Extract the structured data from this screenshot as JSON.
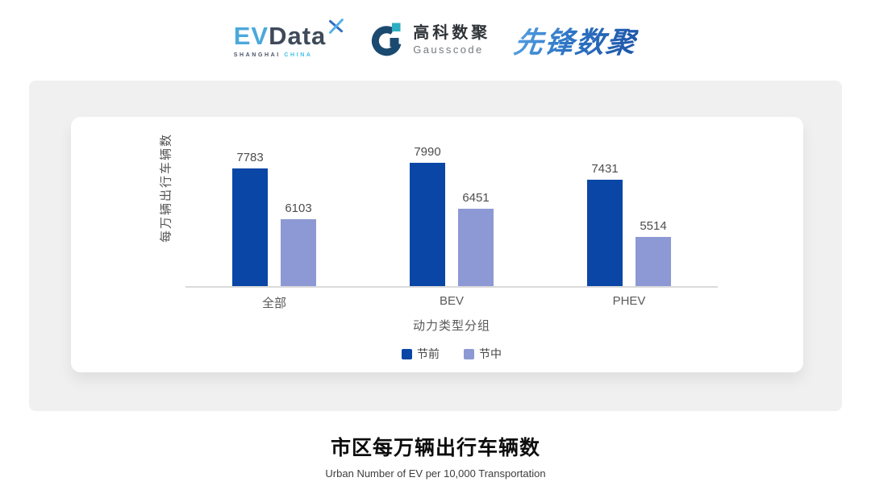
{
  "header": {
    "evdata": {
      "part_primary": "EV",
      "part_secondary": "Data",
      "tagline_left": "SHANGHAI",
      "tagline_right": "CHINA"
    },
    "gausscode": {
      "name_cn": "高科数聚",
      "name_en": "Gausscode"
    },
    "pioneer": {
      "name": "先锋数聚"
    }
  },
  "chart_data": {
    "type": "bar",
    "title": "市区每万辆出行车辆数",
    "subtitle": "Urban Number of EV per 10,000 Transportation",
    "categories": [
      "全部",
      "BEV",
      "PHEV"
    ],
    "series": [
      {
        "name": "节前",
        "color": "#0A46A6",
        "values": [
          7783,
          7990,
          7431
        ]
      },
      {
        "name": "节中",
        "color": "#8D99D4",
        "values": [
          6103,
          6451,
          5514
        ]
      }
    ],
    "xlabel": "动力类型分组",
    "ylabel": "每万辆出行车辆数",
    "ylim": [
      3900,
      8300
    ],
    "grid": false,
    "legend_position": "bottom",
    "data_labels": true
  },
  "colors": {
    "panel_background": "#F0F0F0",
    "card_background": "#FFFFFF",
    "axis_line": "#DBDBDB",
    "series_pre_holiday": "#0A46A6",
    "series_during_holiday": "#8D99D4"
  }
}
